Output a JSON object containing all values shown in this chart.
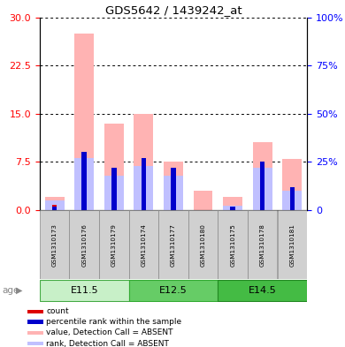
{
  "title": "GDS5642 / 1439242_at",
  "samples": [
    "GSM1310173",
    "GSM1310176",
    "GSM1310179",
    "GSM1310174",
    "GSM1310177",
    "GSM1310180",
    "GSM1310175",
    "GSM1310178",
    "GSM1310181"
  ],
  "groups": [
    {
      "label": "E11.5",
      "indices": [
        0,
        1,
        2
      ]
    },
    {
      "label": "E12.5",
      "indices": [
        3,
        4,
        5
      ]
    },
    {
      "label": "E14.5",
      "indices": [
        6,
        7,
        8
      ]
    }
  ],
  "value_absent": [
    2.0,
    27.5,
    13.5,
    15.0,
    7.5,
    3.0,
    2.0,
    10.5,
    8.0
  ],
  "rank_absent_pct": [
    5.0,
    27.0,
    18.0,
    23.0,
    18.0,
    0.0,
    2.0,
    22.0,
    10.0
  ],
  "count_red": [
    0.8,
    0.0,
    0.0,
    0.0,
    0.0,
    0.0,
    0.5,
    0.0,
    0.0
  ],
  "rank_blue_pct": [
    1.5,
    30.0,
    22.0,
    27.0,
    22.0,
    0.0,
    1.5,
    25.0,
    12.0
  ],
  "ylim_left": [
    0,
    30
  ],
  "ylim_right": [
    0,
    100
  ],
  "yticks_left": [
    0,
    7.5,
    15,
    22.5,
    30
  ],
  "yticks_right": [
    0,
    25,
    50,
    75,
    100
  ],
  "color_value_absent": "#FFB3B3",
  "color_rank_absent": "#C0C0FF",
  "color_count": "#DD0000",
  "color_rank": "#0000CC",
  "color_sample_bg": "#D0D0D0",
  "label_age": "age",
  "legend_items": [
    {
      "color": "#DD0000",
      "label": "count"
    },
    {
      "color": "#0000CC",
      "label": "percentile rank within the sample"
    },
    {
      "color": "#FFB3B3",
      "label": "value, Detection Call = ABSENT"
    },
    {
      "color": "#C0C0FF",
      "label": "rank, Detection Call = ABSENT"
    }
  ]
}
